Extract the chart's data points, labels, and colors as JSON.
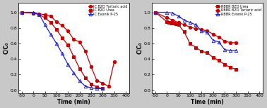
{
  "left_plot": {
    "xlabel": "Time (min)",
    "ylabel": "C/C₀",
    "xlim": [
      -65,
      415
    ],
    "ylim": [
      -0.04,
      1.12
    ],
    "xticks": [
      -50,
      0,
      50,
      100,
      150,
      200,
      250,
      300,
      350,
      400
    ],
    "yticks": [
      0.0,
      0.2,
      0.4,
      0.6,
      0.8,
      1.0
    ],
    "series": [
      {
        "label": "IC BZO Tartaric acid",
        "color": "#cc0000",
        "marker": "o",
        "marker_fill": "#cc0000",
        "x": [
          -50,
          0,
          25,
          50,
          75,
          100,
          125,
          150,
          175,
          200,
          225,
          250,
          275,
          300,
          325,
          350
        ],
        "y": [
          1.0,
          0.99,
          0.98,
          0.97,
          0.95,
          0.88,
          0.83,
          0.76,
          0.65,
          0.62,
          0.5,
          0.3,
          0.12,
          0.09,
          0.05,
          0.37
        ]
      },
      {
        "label": "IC BZO Urea",
        "color": "#cc0000",
        "marker": "s",
        "marker_fill": "#cc0000",
        "x": [
          -50,
          0,
          25,
          50,
          75,
          100,
          125,
          150,
          175,
          200,
          225,
          250,
          275,
          300
        ],
        "y": [
          1.0,
          0.99,
          0.97,
          0.93,
          0.87,
          0.78,
          0.67,
          0.58,
          0.43,
          0.28,
          0.16,
          0.08,
          0.04,
          0.02
        ]
      },
      {
        "label": "IC Evonik P-25",
        "color": "#2222cc",
        "marker": "^",
        "marker_fill": "none",
        "x": [
          -50,
          0,
          25,
          50,
          75,
          100,
          125,
          150,
          175,
          200,
          225,
          250,
          275,
          300
        ],
        "y": [
          1.0,
          1.0,
          0.98,
          0.84,
          0.72,
          0.6,
          0.47,
          0.33,
          0.22,
          0.12,
          0.05,
          0.03,
          0.02,
          0.02
        ]
      }
    ]
  },
  "right_plot": {
    "xlabel": "Time (min)",
    "ylabel": "C/C₀",
    "xlim": [
      -65,
      415
    ],
    "ylim": [
      -0.04,
      1.12
    ],
    "xticks": [
      -50,
      0,
      50,
      100,
      150,
      200,
      250,
      300,
      350,
      400
    ],
    "yticks": [
      0.0,
      0.2,
      0.4,
      0.6,
      0.8,
      1.0
    ],
    "series": [
      {
        "label": "RBBR BZO Urea",
        "color": "#cc0000",
        "marker": "s",
        "marker_fill": "#cc0000",
        "x": [
          -50,
          0,
          10,
          20,
          30,
          40,
          50,
          75,
          100,
          125,
          150,
          175,
          200,
          225,
          250,
          275,
          300
        ],
        "y": [
          1.0,
          0.88,
          0.87,
          0.86,
          0.86,
          0.85,
          0.84,
          0.75,
          0.6,
          0.55,
          0.5,
          0.48,
          0.42,
          0.38,
          0.33,
          0.29,
          0.27
        ]
      },
      {
        "label": "RBBR BZO Tartaric acid",
        "color": "#cc0000",
        "marker": "o",
        "marker_fill": "#cc0000",
        "x": [
          -50,
          0,
          25,
          50,
          75,
          100,
          125,
          150,
          175,
          200,
          225,
          250,
          275,
          300
        ],
        "y": [
          1.0,
          0.93,
          0.9,
          0.87,
          0.84,
          0.81,
          0.79,
          0.78,
          0.76,
          0.72,
          0.68,
          0.63,
          0.61,
          0.61
        ]
      },
      {
        "label": "RBBR Evonik P-25",
        "color": "#2222cc",
        "marker": "^",
        "marker_fill": "none",
        "x": [
          -50,
          0,
          25,
          50,
          75,
          100,
          125,
          150,
          175,
          200,
          225,
          250,
          275,
          300
        ],
        "y": [
          1.0,
          1.0,
          0.99,
          0.95,
          0.9,
          0.87,
          0.84,
          0.76,
          0.74,
          0.64,
          0.62,
          0.52,
          0.51,
          0.51
        ]
      }
    ]
  },
  "fig_bg": "#c8c8c8",
  "plot_bg": "#ffffff"
}
